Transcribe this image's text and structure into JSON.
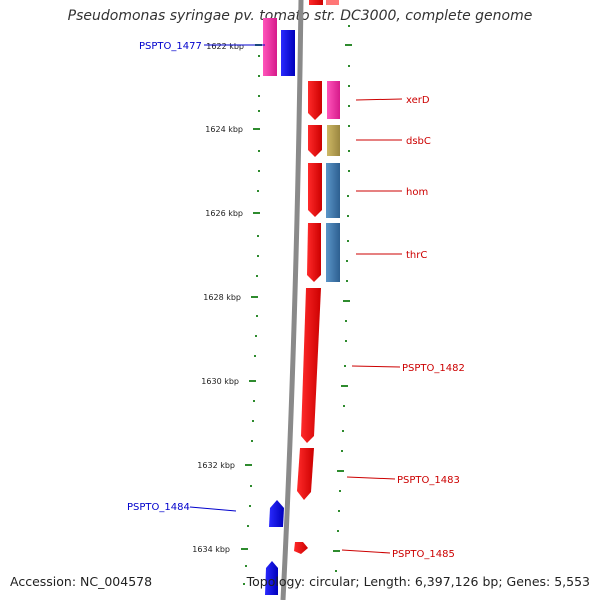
{
  "title": "Pseudomonas syringae pv. tomato str. DC3000, complete genome",
  "footer": {
    "accession": "Accession: NC_004578",
    "topology": "Topology: circular; Length: 6,397,126 bp; Genes: 5,553"
  },
  "colors": {
    "backbone": "#888888",
    "tick": "#2e8b2e",
    "label_forward": "#cc0000",
    "label_reverse": "#0000cc"
  },
  "scale_ticks": [
    "1622 kbp",
    "1624 kbp",
    "1626 kbp",
    "1628 kbp",
    "1630 kbp",
    "1632 kbp",
    "1634 kbp"
  ],
  "gene_labels": [
    {
      "text": "PSPTO_1477",
      "strand": "reverse"
    },
    {
      "text": "xerD",
      "strand": "forward"
    },
    {
      "text": "dsbC",
      "strand": "forward"
    },
    {
      "text": "hom",
      "strand": "forward"
    },
    {
      "text": "thrC",
      "strand": "forward"
    },
    {
      "text": "PSPTO_1482",
      "strand": "forward"
    },
    {
      "text": "PSPTO_1483",
      "strand": "forward"
    },
    {
      "text": "PSPTO_1484",
      "strand": "reverse"
    },
    {
      "text": "PSPTO_1485",
      "strand": "forward"
    }
  ],
  "cog_colors": [
    "#ff0000",
    "#ff3399",
    "#0000ff",
    "#b8a04a",
    "#3a78b0"
  ]
}
